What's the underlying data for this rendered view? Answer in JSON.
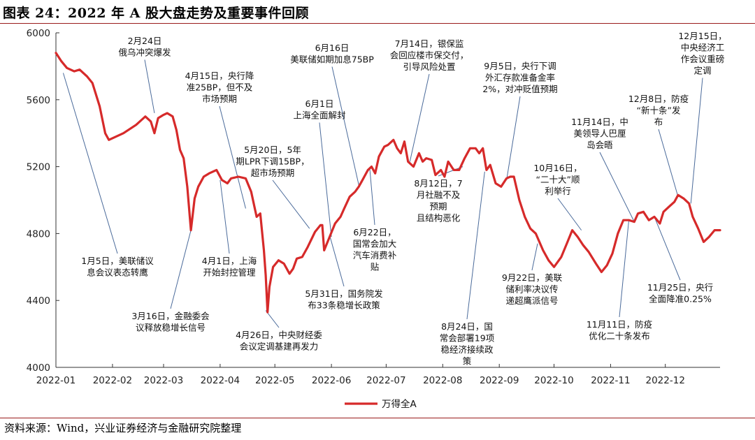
{
  "figure": {
    "title": "图表 24：2022 年 A 股大盘走势及重要事件回顾",
    "source": "资料来源：Wind，兴业证券经济与金融研究院整理"
  },
  "chart_data": {
    "type": "line",
    "title": "",
    "xlabel": "",
    "ylabel": "",
    "ylim": [
      4000,
      6000
    ],
    "yticks": [
      4000,
      4400,
      4800,
      5200,
      5600,
      6000
    ],
    "x_tick_labels": [
      "2022-01",
      "2022-02",
      "2022-03",
      "2022-04",
      "2022-05",
      "2022-06",
      "2022-07",
      "2022-08",
      "2022-09",
      "2022-10",
      "2022-11",
      "2022-12"
    ],
    "grid": false,
    "legend_position": "bottom-center",
    "series": [
      {
        "name": "万得全A",
        "color": "#d62a2a",
        "points": [
          [
            "2022-01-01",
            5880
          ],
          [
            "2022-01-04",
            5830
          ],
          [
            "2022-01-07",
            5790
          ],
          [
            "2022-01-11",
            5770
          ],
          [
            "2022-01-14",
            5780
          ],
          [
            "2022-01-18",
            5740
          ],
          [
            "2022-01-21",
            5700
          ],
          [
            "2022-01-25",
            5560
          ],
          [
            "2022-01-28",
            5400
          ],
          [
            "2022-01-30",
            5360
          ],
          [
            "2022-02-07",
            5400
          ],
          [
            "2022-02-14",
            5450
          ],
          [
            "2022-02-17",
            5480
          ],
          [
            "2022-02-19",
            5500
          ],
          [
            "2022-02-22",
            5470
          ],
          [
            "2022-02-24",
            5400
          ],
          [
            "2022-02-26",
            5490
          ],
          [
            "2022-03-01",
            5510
          ],
          [
            "2022-03-03",
            5520
          ],
          [
            "2022-03-06",
            5500
          ],
          [
            "2022-03-08",
            5420
          ],
          [
            "2022-03-10",
            5300
          ],
          [
            "2022-03-12",
            5250
          ],
          [
            "2022-03-14",
            5080
          ],
          [
            "2022-03-16",
            4820
          ],
          [
            "2022-03-18",
            5010
          ],
          [
            "2022-03-20",
            5080
          ],
          [
            "2022-03-23",
            5140
          ],
          [
            "2022-03-26",
            5160
          ],
          [
            "2022-03-30",
            5180
          ],
          [
            "2022-04-02",
            5120
          ],
          [
            "2022-04-05",
            5100
          ],
          [
            "2022-04-07",
            5130
          ],
          [
            "2022-04-11",
            5140
          ],
          [
            "2022-04-15",
            5130
          ],
          [
            "2022-04-18",
            5050
          ],
          [
            "2022-04-20",
            4950
          ],
          [
            "2022-04-21",
            4900
          ],
          [
            "2022-04-23",
            4920
          ],
          [
            "2022-04-25",
            4700
          ],
          [
            "2022-04-26",
            4550
          ],
          [
            "2022-04-27",
            4330
          ],
          [
            "2022-04-28",
            4480
          ],
          [
            "2022-04-30",
            4600
          ],
          [
            "2022-05-03",
            4640
          ],
          [
            "2022-05-06",
            4620
          ],
          [
            "2022-05-09",
            4560
          ],
          [
            "2022-05-11",
            4590
          ],
          [
            "2022-05-13",
            4650
          ],
          [
            "2022-05-16",
            4660
          ],
          [
            "2022-05-19",
            4720
          ],
          [
            "2022-05-23",
            4810
          ],
          [
            "2022-05-26",
            4850
          ],
          [
            "2022-05-27",
            4850
          ],
          [
            "2022-05-28",
            4700
          ],
          [
            "2022-05-31",
            4780
          ],
          [
            "2022-06-03",
            4860
          ],
          [
            "2022-06-06",
            4900
          ],
          [
            "2022-06-08",
            4950
          ],
          [
            "2022-06-11",
            5020
          ],
          [
            "2022-06-14",
            5050
          ],
          [
            "2022-06-16",
            5080
          ],
          [
            "2022-06-18",
            5120
          ],
          [
            "2022-06-21",
            5180
          ],
          [
            "2022-06-23",
            5200
          ],
          [
            "2022-06-25",
            5160
          ],
          [
            "2022-06-27",
            5260
          ],
          [
            "2022-06-30",
            5320
          ],
          [
            "2022-07-02",
            5330
          ],
          [
            "2022-07-05",
            5360
          ],
          [
            "2022-07-07",
            5310
          ],
          [
            "2022-07-09",
            5280
          ],
          [
            "2022-07-11",
            5350
          ],
          [
            "2022-07-13",
            5230
          ],
          [
            "2022-07-16",
            5200
          ],
          [
            "2022-07-19",
            5280
          ],
          [
            "2022-07-21",
            5230
          ],
          [
            "2022-07-23",
            5250
          ],
          [
            "2022-07-26",
            5240
          ],
          [
            "2022-07-28",
            5150
          ],
          [
            "2022-07-31",
            5180
          ],
          [
            "2022-08-02",
            5140
          ],
          [
            "2022-08-04",
            5230
          ],
          [
            "2022-08-07",
            5180
          ],
          [
            "2022-08-10",
            5180
          ],
          [
            "2022-08-13",
            5250
          ],
          [
            "2022-08-16",
            5310
          ],
          [
            "2022-08-19",
            5310
          ],
          [
            "2022-08-21",
            5280
          ],
          [
            "2022-08-23",
            5310
          ],
          [
            "2022-08-25",
            5180
          ],
          [
            "2022-08-27",
            5210
          ],
          [
            "2022-08-30",
            5100
          ],
          [
            "2022-09-02",
            5080
          ],
          [
            "2022-09-05",
            5130
          ],
          [
            "2022-09-07",
            5140
          ],
          [
            "2022-09-09",
            5140
          ],
          [
            "2022-09-12",
            5000
          ],
          [
            "2022-09-15",
            4900
          ],
          [
            "2022-09-18",
            4830
          ],
          [
            "2022-09-21",
            4800
          ],
          [
            "2022-09-25",
            4700
          ],
          [
            "2022-09-28",
            4640
          ],
          [
            "2022-10-01",
            4600
          ],
          [
            "2022-10-05",
            4660
          ],
          [
            "2022-10-08",
            4740
          ],
          [
            "2022-10-11",
            4820
          ],
          [
            "2022-10-14",
            4780
          ],
          [
            "2022-10-17",
            4730
          ],
          [
            "2022-10-20",
            4690
          ],
          [
            "2022-10-24",
            4620
          ],
          [
            "2022-10-27",
            4570
          ],
          [
            "2022-10-30",
            4610
          ],
          [
            "2022-11-02",
            4680
          ],
          [
            "2022-11-05",
            4800
          ],
          [
            "2022-11-08",
            4880
          ],
          [
            "2022-11-11",
            4880
          ],
          [
            "2022-11-14",
            4870
          ],
          [
            "2022-11-16",
            4920
          ],
          [
            "2022-11-19",
            4930
          ],
          [
            "2022-11-22",
            4880
          ],
          [
            "2022-11-25",
            4900
          ],
          [
            "2022-11-28",
            4860
          ],
          [
            "2022-11-30",
            4930
          ],
          [
            "2022-12-03",
            4960
          ],
          [
            "2022-12-06",
            4990
          ],
          [
            "2022-12-08",
            5030
          ],
          [
            "2022-12-11",
            5010
          ],
          [
            "2022-12-14",
            4980
          ],
          [
            "2022-12-16",
            4900
          ],
          [
            "2022-12-19",
            4830
          ],
          [
            "2022-12-22",
            4750
          ],
          [
            "2022-12-25",
            4780
          ],
          [
            "2022-12-28",
            4820
          ],
          [
            "2022-12-31",
            4820
          ]
        ]
      }
    ],
    "annotations": [
      {
        "text": [
          "1月5日，美联储议",
          "息会议表态转鹰"
        ],
        "date": "2022-01-05"
      },
      {
        "text": [
          "2月24日",
          "俄乌冲突爆发"
        ],
        "date": "2022-02-24"
      },
      {
        "text": [
          "3月16日，金融委会",
          "议释放稳增长信号"
        ],
        "date": "2022-03-16"
      },
      {
        "text": [
          "4月15日，央行降",
          "准25BP，但不及",
          "市场预期"
        ],
        "date": "2022-04-15"
      },
      {
        "text": [
          "4月1日，上海",
          "开始封控管理"
        ],
        "date": "2022-04-01"
      },
      {
        "text": [
          "5月20日，5年",
          "期LPR下调15BP，",
          "超市场预期"
        ],
        "date": "2022-05-20"
      },
      {
        "text": [
          "4月26日，中央财经委",
          "会议定调基建再发力"
        ],
        "date": "2022-04-26"
      },
      {
        "text": [
          "6月1日",
          "上海全面解封"
        ],
        "date": "2022-06-01"
      },
      {
        "text": [
          "5月31日，国务院发",
          "布33条稳增长政策"
        ],
        "date": "2022-05-31"
      },
      {
        "text": [
          "6月16日",
          "美联储如期加息75BP"
        ],
        "date": "2022-06-16"
      },
      {
        "text": [
          "6月22日，",
          "国常会加大",
          "汽车消费补",
          "贴"
        ],
        "date": "2022-06-22"
      },
      {
        "text": [
          "7月14日，银保监",
          "会回应楼市保交付，",
          "引导风险处置"
        ],
        "date": "2022-07-14"
      },
      {
        "text": [
          "8月12日，7",
          "月社融不及",
          "预期",
          "且结构恶化"
        ],
        "date": "2022-08-12"
      },
      {
        "text": [
          "8月24日，国",
          "常会部署19项",
          "稳经济接续政",
          "策"
        ],
        "date": "2022-08-24"
      },
      {
        "text": [
          "9月5日，央行下调",
          "外汇存款准备金率",
          "2%，对冲贬值预期"
        ],
        "date": "2022-09-05"
      },
      {
        "text": [
          "9月22日，美联",
          "储利率决议传",
          "递超鹰派信号"
        ],
        "date": "2022-09-22"
      },
      {
        "text": [
          "10月16日，",
          "“二十大”顺",
          "利举行"
        ],
        "date": "2022-10-16"
      },
      {
        "text": [
          "11月14日，中",
          "美领导人巴厘",
          "岛会晤"
        ],
        "date": "2022-11-14"
      },
      {
        "text": [
          "11月11日，防疫",
          "优化二十条发布"
        ],
        "date": "2022-11-11"
      },
      {
        "text": [
          "12月8日，防疫",
          "“新十条”发",
          "布"
        ],
        "date": "2022-12-08"
      },
      {
        "text": [
          "11月25日，央行",
          "全面降准0.25%"
        ],
        "date": "2022-11-25"
      },
      {
        "text": [
          "12月15日，",
          "中央经济工",
          "作会议重磅",
          "定调"
        ],
        "date": "2022-12-15"
      }
    ]
  }
}
